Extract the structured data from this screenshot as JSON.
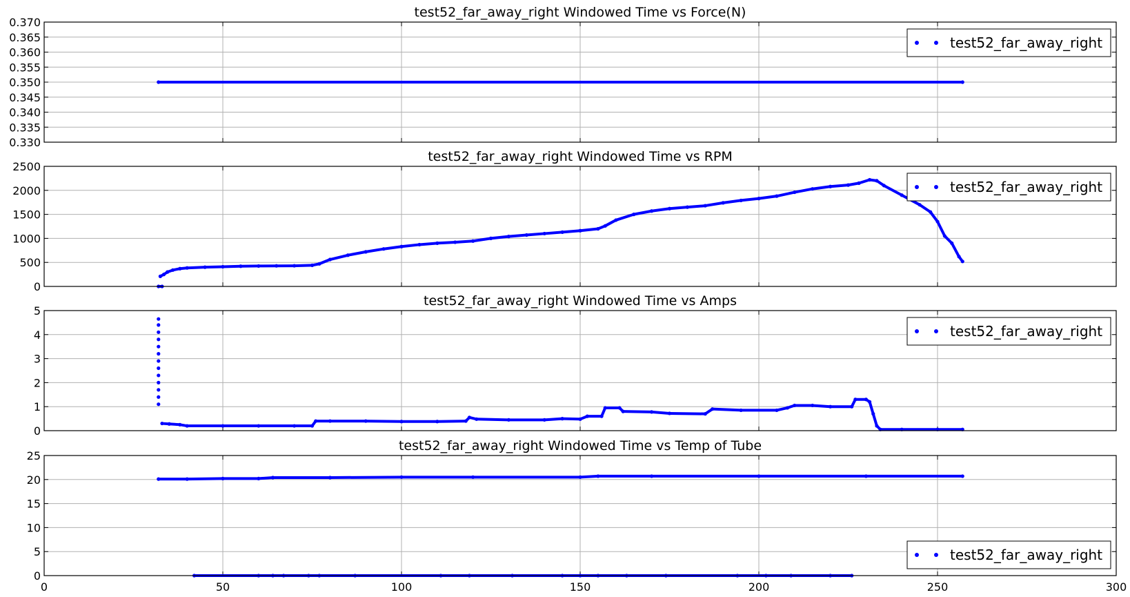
{
  "chart_data": [
    {
      "type": "scatter",
      "title": "test52_far_away_right Windowed Time vs Force(N)",
      "xlim": [
        0,
        300
      ],
      "ylim": [
        0.33,
        0.37
      ],
      "xticks": [],
      "yticks": [
        "0.330",
        "0.335",
        "0.340",
        "0.345",
        "0.350",
        "0.355",
        "0.360",
        "0.365",
        "0.370"
      ],
      "grid": true,
      "legend": {
        "position": "top-right",
        "entries": [
          "test52_far_away_right"
        ]
      },
      "series": [
        {
          "name": "test52_far_away_right",
          "color": "#0000ff",
          "points": [
            [
              32,
              0.35
            ],
            [
              257,
              0.35
            ]
          ]
        }
      ]
    },
    {
      "type": "scatter",
      "title": "test52_far_away_right Windowed Time vs RPM",
      "xlim": [
        0,
        300
      ],
      "ylim": [
        0,
        2500
      ],
      "xticks": [],
      "yticks": [
        "0",
        "500",
        "1000",
        "1500",
        "2000",
        "2500"
      ],
      "grid": true,
      "legend": {
        "position": "top-right",
        "entries": [
          "test52_far_away_right"
        ]
      },
      "series": [
        {
          "name": "test52_far_away_right",
          "color": "#0000ff",
          "points": [
            [
              32,
              0
            ],
            [
              33,
              0
            ],
            [
              32.5,
              210
            ],
            [
              33.5,
              250
            ],
            [
              34.5,
              300
            ],
            [
              36,
              340
            ],
            [
              38,
              370
            ],
            [
              40,
              385
            ],
            [
              45,
              400
            ],
            [
              50,
              410
            ],
            [
              55,
              420
            ],
            [
              60,
              425
            ],
            [
              65,
              428
            ],
            [
              70,
              430
            ],
            [
              75,
              440
            ],
            [
              77,
              470
            ],
            [
              80,
              560
            ],
            [
              85,
              650
            ],
            [
              90,
              720
            ],
            [
              95,
              780
            ],
            [
              100,
              830
            ],
            [
              105,
              870
            ],
            [
              110,
              900
            ],
            [
              115,
              920
            ],
            [
              120,
              945
            ],
            [
              125,
              1000
            ],
            [
              130,
              1040
            ],
            [
              135,
              1070
            ],
            [
              140,
              1100
            ],
            [
              145,
              1130
            ],
            [
              150,
              1160
            ],
            [
              155,
              1200
            ],
            [
              157,
              1260
            ],
            [
              160,
              1380
            ],
            [
              165,
              1500
            ],
            [
              170,
              1570
            ],
            [
              175,
              1620
            ],
            [
              180,
              1650
            ],
            [
              185,
              1680
            ],
            [
              190,
              1740
            ],
            [
              195,
              1790
            ],
            [
              200,
              1830
            ],
            [
              205,
              1880
            ],
            [
              210,
              1960
            ],
            [
              215,
              2030
            ],
            [
              220,
              2080
            ],
            [
              225,
              2110
            ],
            [
              228,
              2150
            ],
            [
              231,
              2220
            ],
            [
              233,
              2200
            ],
            [
              235,
              2100
            ],
            [
              240,
              1900
            ],
            [
              245,
              1700
            ],
            [
              248,
              1550
            ],
            [
              250,
              1350
            ],
            [
              252,
              1050
            ],
            [
              254,
              900
            ],
            [
              256,
              620
            ],
            [
              257,
              520
            ]
          ]
        }
      ]
    },
    {
      "type": "scatter",
      "title": "test52_far_away_right Windowed Time vs Amps",
      "xlim": [
        0,
        300
      ],
      "ylim": [
        0,
        5
      ],
      "xticks": [],
      "yticks": [
        "0",
        "1",
        "2",
        "3",
        "4",
        "5"
      ],
      "grid": true,
      "legend": {
        "position": "top-right",
        "entries": [
          "test52_far_away_right"
        ]
      },
      "series": [
        {
          "name": "test52_far_away_right",
          "color": "#0000ff",
          "points": [
            [
              32,
              1.1
            ],
            [
              32,
              1.4
            ],
            [
              32,
              1.7
            ],
            [
              32,
              2.0
            ],
            [
              32,
              2.3
            ],
            [
              32,
              2.6
            ],
            [
              32,
              2.9
            ],
            [
              32,
              3.2
            ],
            [
              32,
              3.5
            ],
            [
              32,
              3.8
            ],
            [
              32,
              4.1
            ],
            [
              32,
              4.4
            ],
            [
              32,
              4.65
            ],
            [
              33,
              0.3
            ],
            [
              35,
              0.28
            ],
            [
              38,
              0.25
            ],
            [
              40,
              0.2
            ],
            [
              50,
              0.2
            ],
            [
              60,
              0.2
            ],
            [
              70,
              0.2
            ],
            [
              75,
              0.2
            ],
            [
              76,
              0.4
            ],
            [
              80,
              0.4
            ],
            [
              90,
              0.4
            ],
            [
              100,
              0.38
            ],
            [
              110,
              0.38
            ],
            [
              118,
              0.4
            ],
            [
              119,
              0.55
            ],
            [
              121,
              0.48
            ],
            [
              130,
              0.45
            ],
            [
              140,
              0.45
            ],
            [
              145,
              0.5
            ],
            [
              150,
              0.48
            ],
            [
              152,
              0.6
            ],
            [
              156,
              0.6
            ],
            [
              157,
              0.95
            ],
            [
              161,
              0.95
            ],
            [
              162,
              0.8
            ],
            [
              170,
              0.78
            ],
            [
              175,
              0.72
            ],
            [
              185,
              0.7
            ],
            [
              187,
              0.9
            ],
            [
              195,
              0.85
            ],
            [
              205,
              0.85
            ],
            [
              208,
              0.95
            ],
            [
              210,
              1.05
            ],
            [
              215,
              1.05
            ],
            [
              220,
              1.0
            ],
            [
              226,
              1.0
            ],
            [
              227,
              1.3
            ],
            [
              230,
              1.3
            ],
            [
              231,
              1.2
            ],
            [
              232,
              0.7
            ],
            [
              233,
              0.2
            ],
            [
              234,
              0.05
            ],
            [
              240,
              0.05
            ],
            [
              250,
              0.05
            ],
            [
              257,
              0.05
            ]
          ]
        }
      ]
    },
    {
      "type": "scatter",
      "title": "test52_far_away_right Windowed Time vs Temp of Tube",
      "xlim": [
        0,
        300
      ],
      "ylim": [
        0,
        25
      ],
      "xticks": [
        "0",
        "50",
        "100",
        "150",
        "200",
        "250",
        "300"
      ],
      "yticks": [
        "0",
        "5",
        "10",
        "15",
        "20",
        "25"
      ],
      "grid": true,
      "legend": {
        "position": "bottom-right",
        "entries": [
          "test52_far_away_right"
        ]
      },
      "series": [
        {
          "name": "test52_far_away_right",
          "color": "#0000ff",
          "points": [
            [
              32,
              20.1
            ],
            [
              40,
              20.1
            ],
            [
              50,
              20.2
            ],
            [
              60,
              20.2
            ],
            [
              64,
              20.4
            ],
            [
              80,
              20.4
            ],
            [
              100,
              20.5
            ],
            [
              120,
              20.5
            ],
            [
              150,
              20.5
            ],
            [
              155,
              20.7
            ],
            [
              170,
              20.7
            ],
            [
              200,
              20.7
            ],
            [
              230,
              20.7
            ],
            [
              257,
              20.7
            ],
            [
              42,
              0
            ],
            [
              60,
              0
            ],
            [
              64,
              0
            ],
            [
              67,
              0
            ],
            [
              74,
              0
            ],
            [
              77,
              0
            ],
            [
              87,
              0
            ],
            [
              111,
              0
            ],
            [
              119,
              0
            ],
            [
              131,
              0
            ],
            [
              145,
              0
            ],
            [
              150,
              0
            ],
            [
              155,
              0
            ],
            [
              163,
              0
            ],
            [
              174,
              0
            ],
            [
              194,
              0
            ],
            [
              202,
              0
            ],
            [
              209,
              0
            ],
            [
              220,
              0
            ],
            [
              226,
              0
            ]
          ]
        }
      ]
    }
  ]
}
